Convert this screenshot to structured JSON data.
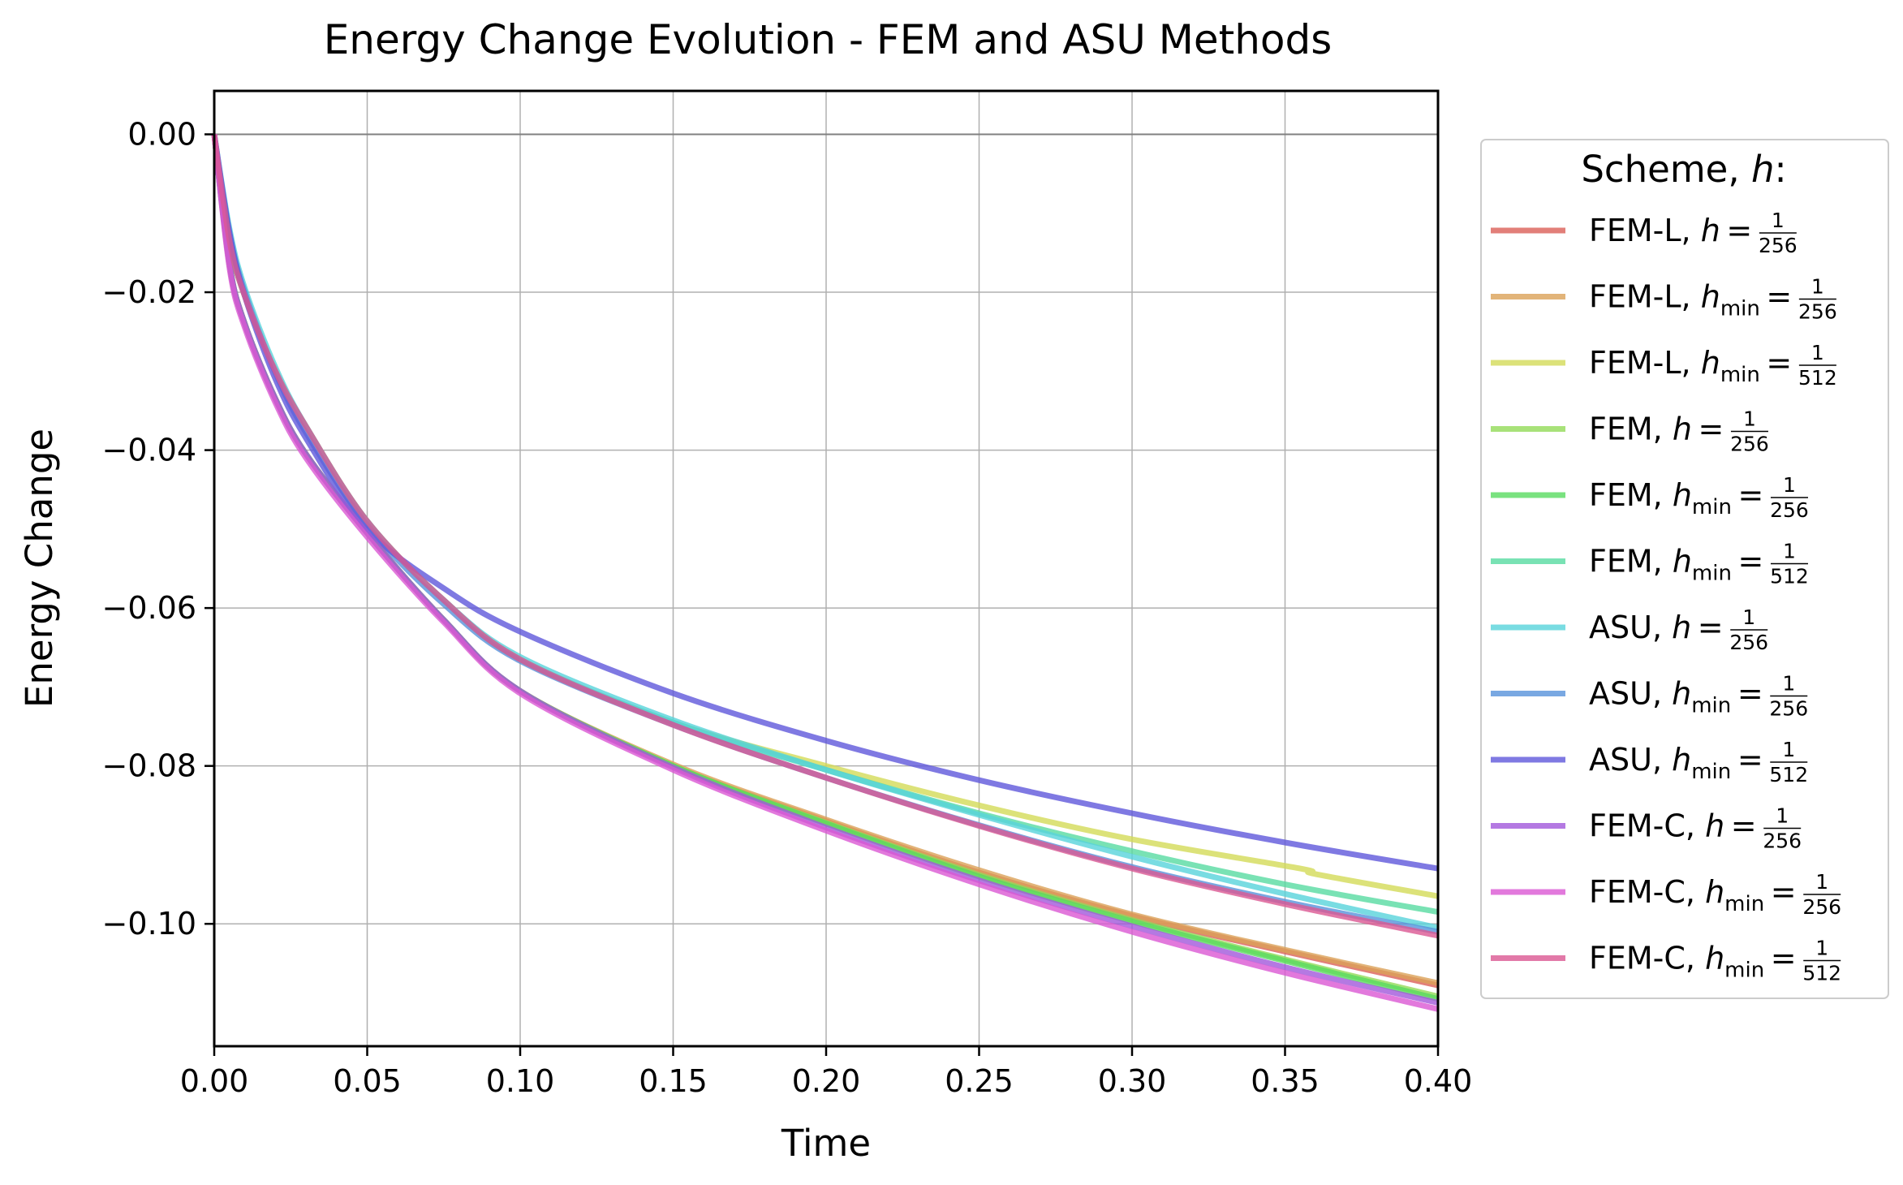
{
  "chart_data": {
    "type": "line",
    "title": "Energy Change Evolution - FEM and ASU Methods",
    "xlabel": "Time",
    "ylabel": "Energy Change",
    "xlim": [
      0.0,
      0.4
    ],
    "ylim": [
      -0.1155,
      0.0055
    ],
    "xticks": [
      "0.00",
      "0.05",
      "0.10",
      "0.15",
      "0.20",
      "0.25",
      "0.30",
      "0.35",
      "0.40"
    ],
    "yticks": [
      "0.00",
      "−0.02",
      "−0.04",
      "−0.06",
      "−0.08",
      "−0.10"
    ],
    "grid": true,
    "legend": {
      "title_prefix": "Scheme, ",
      "title_var": "h",
      "title_suffix": ":",
      "placement": "outside right"
    },
    "series": [
      {
        "name": "FEM-L, h = 1/256",
        "scheme": "FEM-L",
        "var": "h",
        "sub": "",
        "num": "1",
        "den": "256",
        "color": "#db5f57",
        "x": [
          0.0,
          0.005,
          0.01,
          0.02,
          0.03,
          0.05,
          0.075,
          0.1,
          0.15,
          0.2,
          0.25,
          0.3,
          0.35,
          0.4
        ],
        "y": [
          0.0,
          -0.0165,
          -0.024,
          -0.0335,
          -0.0405,
          -0.0505,
          -0.0615,
          -0.0705,
          -0.08,
          -0.087,
          -0.0935,
          -0.099,
          -0.1035,
          -0.1078
        ]
      },
      {
        "name": "FEM-L, h_min = 1/256",
        "scheme": "FEM-L",
        "var": "h",
        "sub": "min",
        "num": "1",
        "den": "256",
        "color": "#dba157",
        "x": [
          0.0,
          0.005,
          0.01,
          0.02,
          0.03,
          0.05,
          0.075,
          0.1,
          0.15,
          0.2,
          0.25,
          0.3,
          0.35,
          0.4
        ],
        "y": [
          0.0,
          -0.0165,
          -0.024,
          -0.0335,
          -0.0405,
          -0.0505,
          -0.0615,
          -0.0705,
          -0.0798,
          -0.0868,
          -0.0932,
          -0.0988,
          -0.1033,
          -0.1075
        ]
      },
      {
        "name": "FEM-L, h_min = 1/512",
        "scheme": "FEM-L",
        "var": "h",
        "sub": "min",
        "num": "1",
        "den": "512",
        "color": "#d3db57",
        "x": [
          0.0,
          0.005,
          0.01,
          0.02,
          0.03,
          0.05,
          0.075,
          0.1,
          0.15,
          0.2,
          0.25,
          0.3,
          0.355,
          0.36,
          0.4
        ],
        "y": [
          0.0,
          -0.0135,
          -0.0205,
          -0.03,
          -0.037,
          -0.049,
          -0.059,
          -0.0665,
          -0.0745,
          -0.08,
          -0.085,
          -0.0893,
          -0.093,
          -0.0937,
          -0.0965
        ]
      },
      {
        "name": "FEM, h = 1/256",
        "scheme": "FEM",
        "var": "h",
        "sub": "",
        "num": "1",
        "den": "256",
        "color": "#92db57",
        "x": [
          0.0,
          0.005,
          0.01,
          0.02,
          0.03,
          0.05,
          0.075,
          0.1,
          0.15,
          0.2,
          0.25,
          0.3,
          0.35,
          0.4
        ],
        "y": [
          0.0,
          -0.0165,
          -0.024,
          -0.0335,
          -0.0405,
          -0.0505,
          -0.0615,
          -0.0705,
          -0.08,
          -0.0872,
          -0.0938,
          -0.0995,
          -0.1045,
          -0.1092
        ]
      },
      {
        "name": "FEM, h_min = 1/256",
        "scheme": "FEM",
        "var": "h",
        "sub": "min",
        "num": "1",
        "den": "256",
        "color": "#57db5f",
        "x": [
          0.0,
          0.005,
          0.01,
          0.02,
          0.03,
          0.05,
          0.075,
          0.1,
          0.15,
          0.2,
          0.25,
          0.3,
          0.35,
          0.4
        ],
        "y": [
          0.0,
          -0.0165,
          -0.024,
          -0.0335,
          -0.0405,
          -0.0505,
          -0.0615,
          -0.0705,
          -0.08,
          -0.0873,
          -0.094,
          -0.0997,
          -0.1047,
          -0.1095
        ]
      },
      {
        "name": "FEM, h_min = 1/512",
        "scheme": "FEM",
        "var": "h",
        "sub": "min",
        "num": "1",
        "den": "512",
        "color": "#57dba1",
        "x": [
          0.0,
          0.005,
          0.01,
          0.02,
          0.03,
          0.05,
          0.075,
          0.1,
          0.15,
          0.2,
          0.25,
          0.3,
          0.35,
          0.4
        ],
        "y": [
          0.0,
          -0.0135,
          -0.0205,
          -0.03,
          -0.037,
          -0.049,
          -0.059,
          -0.0665,
          -0.0745,
          -0.0805,
          -0.086,
          -0.0908,
          -0.095,
          -0.0985
        ]
      },
      {
        "name": "ASU, h = 1/256",
        "scheme": "ASU",
        "var": "h",
        "sub": "",
        "num": "1",
        "den": "256",
        "color": "#57d3db",
        "x": [
          0.0,
          0.005,
          0.01,
          0.02,
          0.03,
          0.05,
          0.075,
          0.1,
          0.15,
          0.2,
          0.25,
          0.3,
          0.35,
          0.4
        ],
        "y": [
          0.0,
          -0.012,
          -0.0195,
          -0.0295,
          -0.037,
          -0.049,
          -0.059,
          -0.0662,
          -0.0742,
          -0.0805,
          -0.0862,
          -0.0915,
          -0.0962,
          -0.1005
        ]
      },
      {
        "name": "ASU, h_min = 1/256",
        "scheme": "ASU",
        "var": "h",
        "sub": "min",
        "num": "1",
        "den": "256",
        "color": "#5792db",
        "x": [
          0.0,
          0.005,
          0.01,
          0.02,
          0.03,
          0.05,
          0.075,
          0.1,
          0.15,
          0.2,
          0.25,
          0.3,
          0.35,
          0.4
        ],
        "y": [
          0.0,
          -0.0125,
          -0.02,
          -0.0302,
          -0.0378,
          -0.0495,
          -0.0595,
          -0.0667,
          -0.0748,
          -0.0815,
          -0.0875,
          -0.0928,
          -0.0972,
          -0.101
        ]
      },
      {
        "name": "ASU, h_min = 1/512",
        "scheme": "ASU",
        "var": "h",
        "sub": "min",
        "num": "1",
        "den": "512",
        "color": "#5f57db",
        "x": [
          0.0,
          0.005,
          0.01,
          0.02,
          0.03,
          0.05,
          0.075,
          0.1,
          0.15,
          0.2,
          0.25,
          0.3,
          0.35,
          0.4
        ],
        "y": [
          0.0,
          -0.0125,
          -0.0205,
          -0.031,
          -0.0385,
          -0.05,
          -0.0575,
          -0.063,
          -0.0708,
          -0.0768,
          -0.0818,
          -0.086,
          -0.0897,
          -0.093
        ]
      },
      {
        "name": "FEM-C, h = 1/256",
        "scheme": "FEM-C",
        "var": "h",
        "sub": "",
        "num": "1",
        "den": "256",
        "color": "#a157db",
        "x": [
          0.0,
          0.005,
          0.01,
          0.02,
          0.03,
          0.05,
          0.075,
          0.1,
          0.15,
          0.2,
          0.25,
          0.3,
          0.35,
          0.4
        ],
        "y": [
          0.0,
          -0.0165,
          -0.024,
          -0.0335,
          -0.0405,
          -0.0505,
          -0.0615,
          -0.0705,
          -0.0802,
          -0.0878,
          -0.0945,
          -0.1003,
          -0.1055,
          -0.11
        ]
      },
      {
        "name": "FEM-C, h_min = 1/256",
        "scheme": "FEM-C",
        "var": "h",
        "sub": "min",
        "num": "1",
        "den": "256",
        "color": "#db57d3",
        "x": [
          0.0,
          0.005,
          0.01,
          0.02,
          0.03,
          0.05,
          0.075,
          0.1,
          0.15,
          0.2,
          0.25,
          0.3,
          0.35,
          0.4
        ],
        "y": [
          0.0,
          -0.017,
          -0.0245,
          -0.034,
          -0.041,
          -0.051,
          -0.0618,
          -0.0708,
          -0.0805,
          -0.0882,
          -0.095,
          -0.101,
          -0.1062,
          -0.1108
        ]
      },
      {
        "name": "FEM-C, h_min = 1/512",
        "scheme": "FEM-C",
        "var": "h",
        "sub": "min",
        "num": "1",
        "den": "512",
        "color": "#db5792",
        "x": [
          0.0,
          0.005,
          0.01,
          0.02,
          0.03,
          0.05,
          0.075,
          0.1,
          0.15,
          0.2,
          0.25,
          0.3,
          0.35,
          0.4
        ],
        "y": [
          0.0,
          -0.0135,
          -0.0205,
          -0.03,
          -0.037,
          -0.049,
          -0.059,
          -0.0665,
          -0.0748,
          -0.0815,
          -0.0876,
          -0.093,
          -0.0975,
          -0.1015
        ]
      }
    ]
  }
}
